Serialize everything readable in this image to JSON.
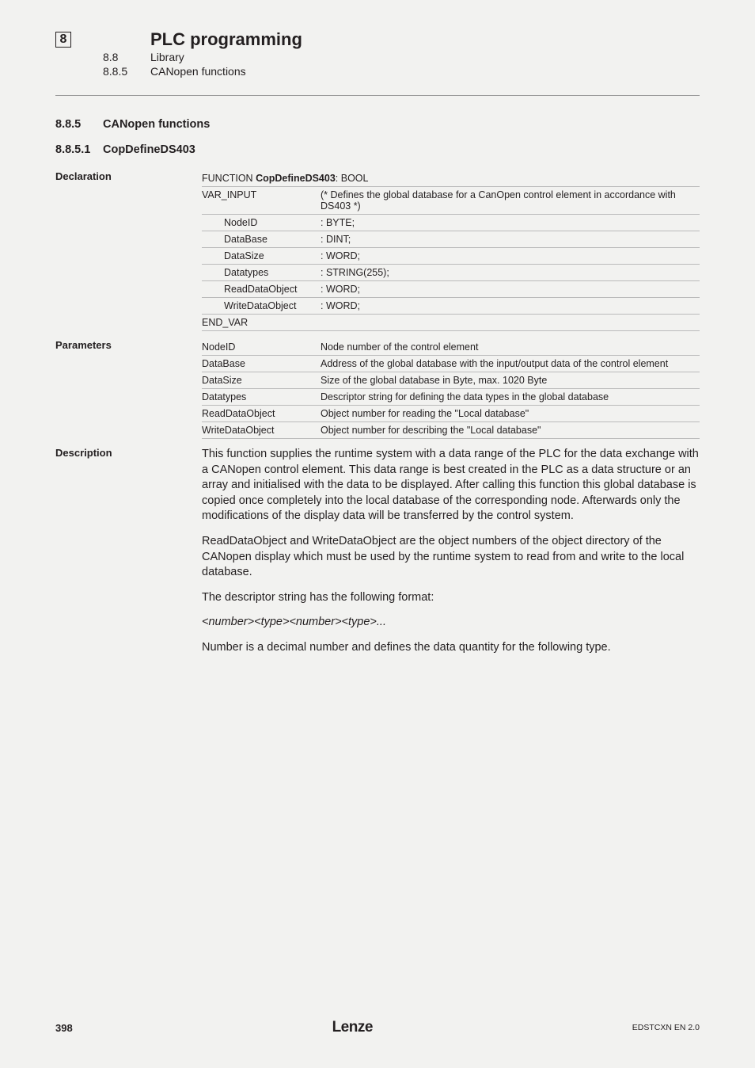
{
  "header": {
    "chapter_number": "8",
    "chapter_title": "PLC programming",
    "section_number": "8.8",
    "section_title": "Library",
    "subsection_number": "8.8.5",
    "subsection_title": "CANopen functions"
  },
  "headings": {
    "h885_num": "8.8.5",
    "h885_title": "CANopen functions",
    "h8851_num": "8.8.5.1",
    "h8851_title": "CopDefineDS403"
  },
  "declaration": {
    "label": "Declaration",
    "func_kw": "FUNCTION ",
    "func_name": "CopDefineDS403",
    "func_ret": ": BOOL",
    "var_input": "VAR_INPUT",
    "var_input_comment": "(* Defines the global database for a CanOpen control element in accordance with DS403 *)",
    "rows": [
      {
        "name": "NodeID",
        "type": ": BYTE;"
      },
      {
        "name": "DataBase",
        "type": ": DINT;"
      },
      {
        "name": "DataSize",
        "type": ": WORD;"
      },
      {
        "name": "Datatypes",
        "type": ": STRING(255);"
      },
      {
        "name": "ReadDataObject",
        "type": ": WORD;"
      },
      {
        "name": "WriteDataObject",
        "type": ": WORD;"
      }
    ],
    "end_var": "END_VAR"
  },
  "parameters": {
    "label": "Parameters",
    "rows": [
      {
        "name": "NodeID",
        "desc": "Node number of the control element"
      },
      {
        "name": "DataBase",
        "desc": "Address of the global database with the input/output data of the control element"
      },
      {
        "name": "DataSize",
        "desc": "Size of the global database in Byte, max. 1020 Byte"
      },
      {
        "name": "Datatypes",
        "desc": "Descriptor string for defining the data types in the global database"
      },
      {
        "name": "ReadDataObject",
        "desc": "Object number for reading the \"Local database\""
      },
      {
        "name": "WriteDataObject",
        "desc": "Object number for describing the \"Local database\""
      }
    ]
  },
  "description": {
    "label": "Description",
    "p1": "This function supplies the runtime system with a data range of the PLC for the data exchange with a CANopen control element. This data range is best created in the PLC as a data structure or an array and initialised with the data to be displayed. After calling this function this global database is copied once completely into the local database of the corresponding node. Afterwards only the modifications of the display data will be transferred by the control system.",
    "p2": "ReadDataObject and WriteDataObject are the object numbers of the object directory of the CANopen display which must be used by the runtime system to read from and write to the local database.",
    "p3": "The descriptor string has the following format:",
    "p4": "<number><type><number><type>...",
    "p5": "Number is a decimal number and defines the data quantity for the following type."
  },
  "footer": {
    "page": "398",
    "brand": "Lenze",
    "docid": "EDSTCXN EN 2.0"
  }
}
